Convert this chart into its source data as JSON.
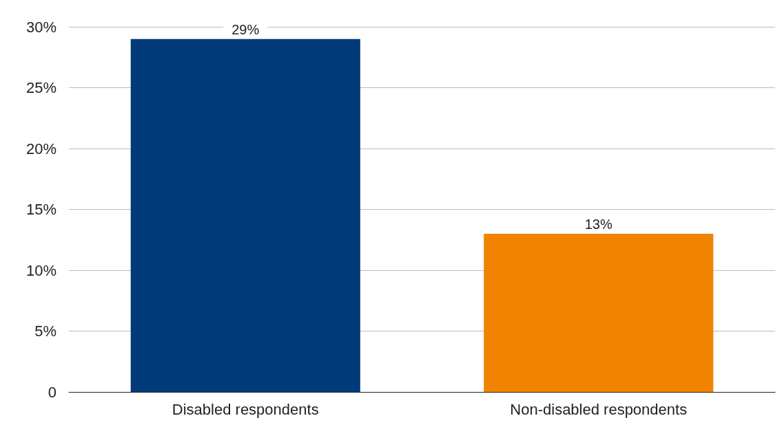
{
  "chart_data": {
    "type": "bar",
    "categories": [
      "Disabled respondents",
      "Non-disabled respondents"
    ],
    "values": [
      29,
      13
    ],
    "colors": [
      "#003a78",
      "#f08400"
    ],
    "value_labels": [
      "29%",
      "13%"
    ],
    "ylim": [
      0,
      30
    ],
    "yticks": [
      0,
      {
        "value": 5,
        "label": "5%"
      },
      {
        "value": 10,
        "label": "10%"
      },
      {
        "value": 15,
        "label": "15%"
      },
      {
        "value": 20,
        "label": "20%"
      },
      {
        "value": 25,
        "label": "25%"
      },
      {
        "value": 30,
        "label": "30%"
      }
    ],
    "grid": "y"
  }
}
